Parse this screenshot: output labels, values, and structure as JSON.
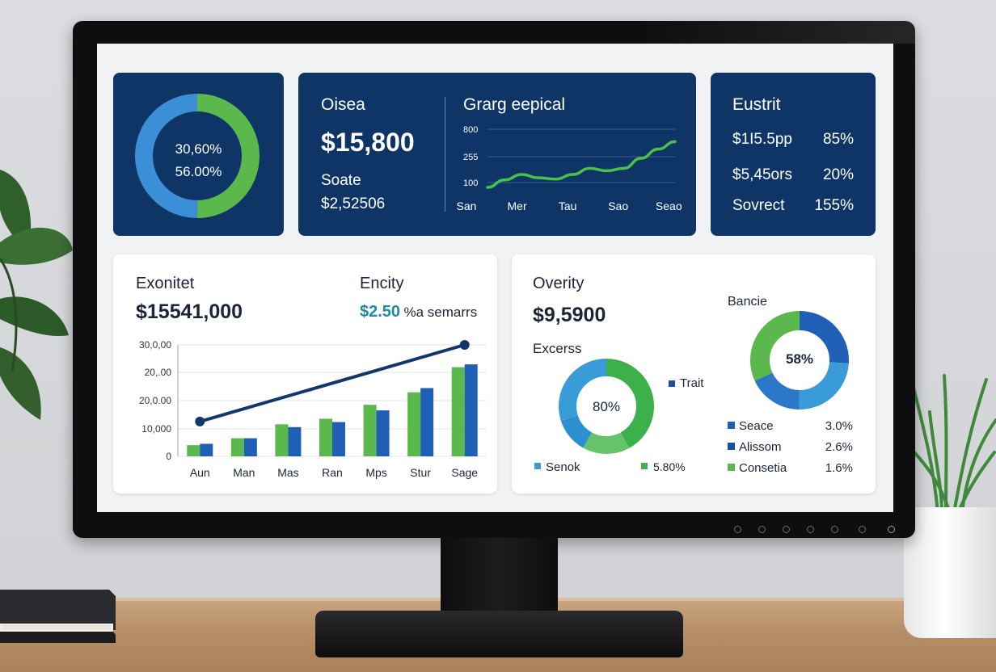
{
  "card_donut": {
    "line1": "30,60%",
    "line2": "56.00%",
    "segments": [
      {
        "fraction": 0.5,
        "color": "#5ab84c"
      },
      {
        "fraction": 0.5,
        "color": "#3a8fd6"
      }
    ]
  },
  "card_revenue": {
    "title": "Oisea",
    "amount": "$15,800",
    "sub_label": "Soate",
    "sub_value": "$2,52506"
  },
  "card_line": {
    "title": "Grarg eepical",
    "chart_data": {
      "type": "line",
      "title": "Grarg eepical",
      "y_ticks": [
        "800",
        "255",
        "100"
      ],
      "categories": [
        "San",
        "Mer",
        "Tau",
        "Sao",
        "Seao"
      ],
      "x": [
        0,
        1,
        2,
        3,
        4,
        5,
        6,
        7,
        8,
        9,
        10,
        11
      ],
      "values": [
        100,
        190,
        255,
        215,
        200,
        255,
        330,
        300,
        330,
        450,
        560,
        650
      ],
      "color": "#4cc14a"
    }
  },
  "card_stats": {
    "title": "Eustrit",
    "rows": [
      {
        "label": "$1I5.5pp",
        "value": "85%"
      },
      {
        "label": "$5,45ors",
        "value": "20%"
      },
      {
        "label": "Sovrect",
        "value": "155%"
      }
    ]
  },
  "card_bar": {
    "title": "Exonitet",
    "amount": "$15541,000",
    "right_title": "Encity",
    "right_value": "$2.50",
    "right_suffix": "%a semarrs",
    "chart_data": {
      "type": "bar",
      "categories": [
        "Aun",
        "Man",
        "Mas",
        "Ran",
        "Mps",
        "Stur",
        "Sage"
      ],
      "y_ticks": [
        "0",
        "10,000",
        "20,0.00",
        "20,.00",
        "30,0,00"
      ],
      "ylim": [
        0,
        40000
      ],
      "series": [
        {
          "values": [
            4000,
            6500,
            11500,
            13500,
            18500,
            23000,
            32000
          ],
          "color": "#5ab84c"
        },
        {
          "values": [
            4500,
            6500,
            10500,
            12300,
            16500,
            24500,
            33000
          ],
          "color": "#1f5fb5"
        }
      ],
      "trend": {
        "start": 12500,
        "end": 40000,
        "color": "#13376b"
      }
    }
  },
  "card_overview": {
    "title": "Overity",
    "amount": "$9,5900",
    "sub_title": "Excerss",
    "donut1": {
      "label": "80%",
      "segments": [
        {
          "fraction": 0.42,
          "color": "#3bb04b"
        },
        {
          "fraction": 0.16,
          "color": "#67c36a"
        },
        {
          "fraction": 0.12,
          "color": "#2d8fcd"
        },
        {
          "fraction": 0.3,
          "color": "#3a9bd9"
        }
      ]
    },
    "donut1_legend": {
      "label": "Trait",
      "color": "#1f4e9c"
    },
    "legend_left": [
      {
        "label": "Senok",
        "color": "#3a9bd9"
      },
      {
        "label": "5.80%",
        "color": "#3bb04b"
      }
    ],
    "donut2_title": "Bancie",
    "donut2": {
      "label": "58%",
      "segments": [
        {
          "fraction": 0.26,
          "color": "#1f5fb5"
        },
        {
          "fraction": 0.24,
          "color": "#3a9bd9"
        },
        {
          "fraction": 0.18,
          "color": "#2a78c7"
        },
        {
          "fraction": 0.32,
          "color": "#5ab84c"
        }
      ]
    },
    "legend_right": [
      {
        "label": "Seace",
        "value": "3.0%",
        "color": "#1f5fb5"
      },
      {
        "label": "Alissom",
        "value": "2.6%",
        "color": "#1f4e9c"
      },
      {
        "label": "Consetia",
        "value": "1.6%",
        "color": "#5ab84c"
      }
    ]
  }
}
